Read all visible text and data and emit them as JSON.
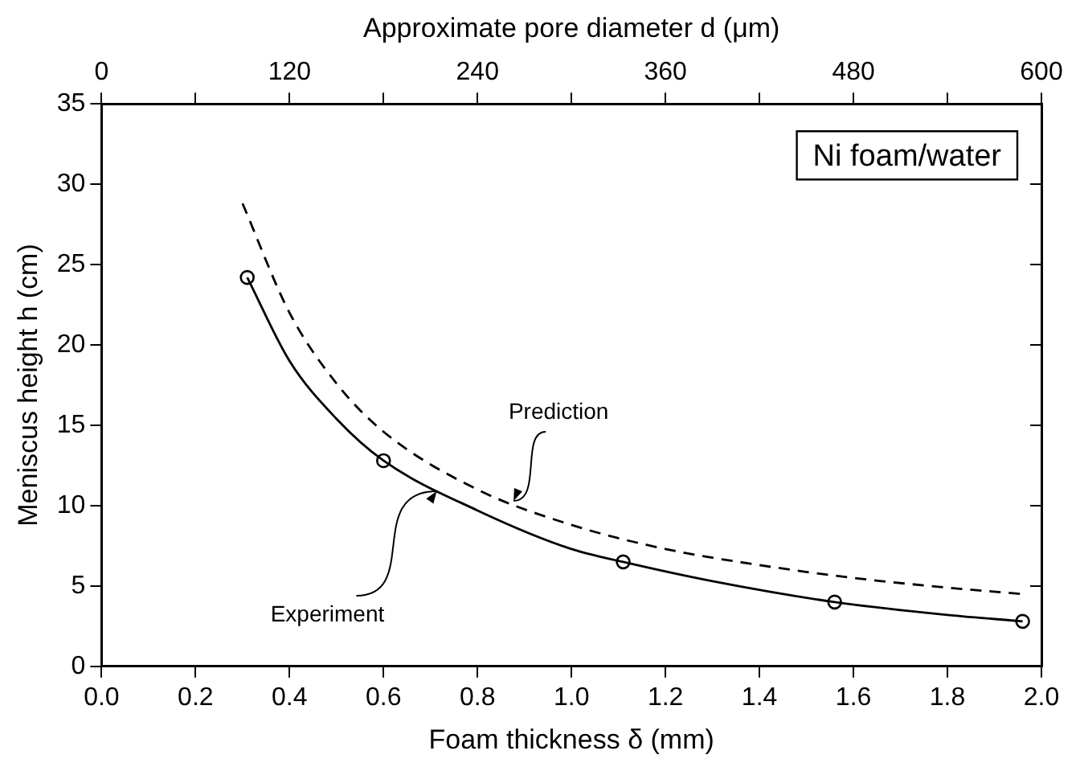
{
  "chart_data": {
    "type": "line",
    "xlabel": "Foam thickness δ (mm)",
    "ylabel": "Meniscus height h (cm)",
    "x2label": "Approximate pore diameter d (μm)",
    "series": [
      {
        "color": "#000000",
        "line_style": "solid",
        "marker": "none",
        "x": [
          0.31,
          0.4,
          0.5,
          0.6,
          0.8,
          1.0,
          1.11,
          1.3,
          1.56,
          1.8,
          1.96
        ],
        "values": [
          24.2,
          19.0,
          15.4,
          12.8,
          9.7,
          7.3,
          6.5,
          5.3,
          4.0,
          3.2,
          2.8
        ]
      },
      {
        "color": "#000000",
        "line_style": "dashed",
        "marker": "none",
        "x": [
          0.3,
          0.4,
          0.5,
          0.6,
          0.8,
          1.0,
          1.2,
          1.4,
          1.6,
          1.8,
          1.96
        ],
        "values": [
          28.8,
          22.0,
          17.6,
          14.6,
          11.0,
          8.8,
          7.3,
          6.3,
          5.5,
          4.9,
          4.5
        ]
      },
      {
        "type": "scatter",
        "color": "#000000",
        "marker": "circle",
        "x": [
          0.31,
          0.6,
          1.11,
          1.56,
          1.96
        ],
        "values": [
          24.2,
          12.8,
          6.5,
          4.0,
          2.8
        ]
      }
    ],
    "xlim": [
      0,
      2
    ],
    "xticks": [
      {
        "value": 0,
        "label": "0.0"
      },
      0.2,
      0.4,
      0.6,
      0.8,
      {
        "value": 1,
        "label": "1.0"
      },
      1.2,
      1.4,
      1.6,
      1.8,
      {
        "value": 2,
        "label": "2.0"
      }
    ],
    "ylim": [
      0,
      35
    ],
    "yticks": [
      0,
      5,
      10,
      15,
      20,
      25,
      30,
      35
    ],
    "x2lim": [
      0,
      600
    ],
    "x2ticks": [
      0,
      {
        "value": 60,
        "label": null
      },
      120,
      {
        "value": 180,
        "label": null
      },
      240,
      {
        "value": 300,
        "label": null
      },
      360,
      {
        "value": 420,
        "label": null
      },
      480,
      {
        "value": 540,
        "label": null
      },
      600
    ],
    "annotations": [
      "Ni foam/water",
      {
        "text": "Prediction",
        "x": 0.87,
        "y": 10.0
      },
      {
        "text": "Experiment",
        "x": 0.72,
        "y": 11.2
      }
    ],
    "grid": false,
    "legend": false
  }
}
